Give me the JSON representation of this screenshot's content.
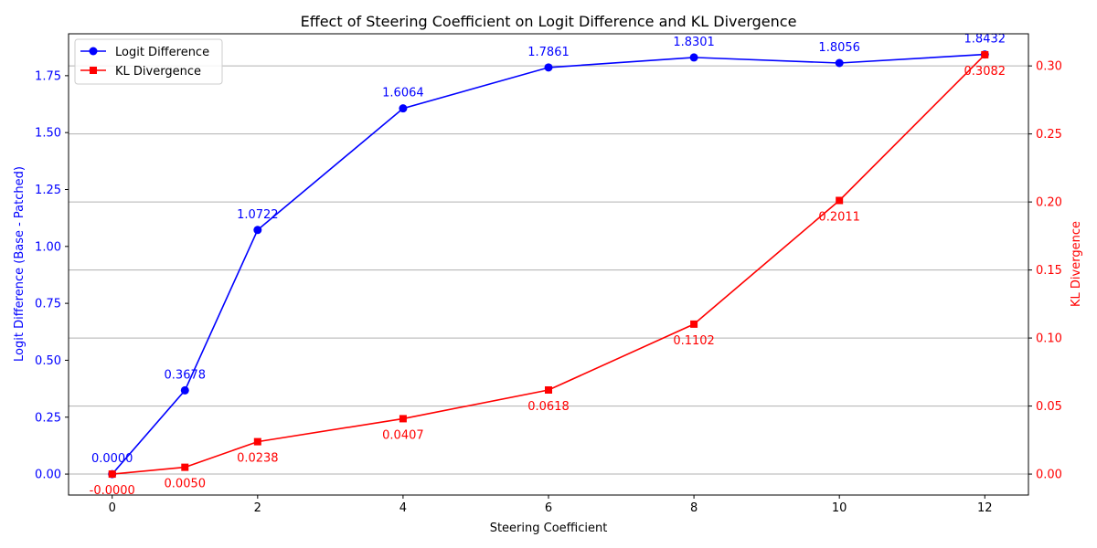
{
  "chart_data": {
    "type": "line",
    "title": "Effect of Steering Coefficient on Logit Difference and KL Divergence",
    "xlabel": "Steering Coefficient",
    "ylabel_left": "Logit Difference (Base - Patched)",
    "ylabel_right": "KL Divergence",
    "x": [
      0,
      1,
      2,
      4,
      6,
      8,
      10,
      12
    ],
    "xlim": [
      -0.6,
      12.6
    ],
    "xticks": [
      0,
      2,
      4,
      6,
      8,
      10,
      12
    ],
    "ylim_left": [
      -0.092,
      1.934
    ],
    "yticks_left": [
      "0.00",
      "0.25",
      "0.50",
      "0.75",
      "1.00",
      "1.25",
      "1.50",
      "1.75"
    ],
    "ylim_right": [
      -0.0154,
      0.3236
    ],
    "yticks_right": [
      "0.00",
      "0.05",
      "0.10",
      "0.15",
      "0.20",
      "0.25",
      "0.30"
    ],
    "grid": "horizontal, right axis",
    "legend_position": "top-left",
    "colors": {
      "left": "#0000ff",
      "right": "#ff0000",
      "grid": "#b0b0b0",
      "axis": "#000000"
    },
    "series": [
      {
        "name": "Logit Difference",
        "axis": "left",
        "marker": "circle",
        "color": "#0000ff",
        "values": [
          0.0,
          0.3678,
          1.0722,
          1.6064,
          1.7861,
          1.8301,
          1.8056,
          1.8432
        ],
        "labels": [
          "0.0000",
          "0.3678",
          "1.0722",
          "1.6064",
          "1.7861",
          "1.8301",
          "1.8056",
          "1.8432"
        ]
      },
      {
        "name": "KL Divergence",
        "axis": "right",
        "marker": "square",
        "color": "#ff0000",
        "values": [
          0.0,
          0.005,
          0.0238,
          0.0407,
          0.0618,
          0.1102,
          0.2011,
          0.3082
        ],
        "labels": [
          "-0.0000",
          "0.0050",
          "0.0238",
          "0.0407",
          "0.0618",
          "0.1102",
          "0.2011",
          "0.3082"
        ]
      }
    ]
  }
}
